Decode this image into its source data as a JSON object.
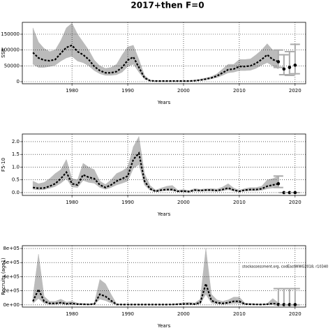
{
  "title": "2017+then F=0",
  "chart_data": [
    {
      "type": "line",
      "y_label": "SSB",
      "x_label": "Years",
      "x": [
        1973,
        1974,
        1975,
        1976,
        1977,
        1978,
        1979,
        1980,
        1981,
        1982,
        1983,
        1984,
        1985,
        1986,
        1987,
        1988,
        1989,
        1990,
        1991,
        1992,
        1993,
        1994,
        1995,
        1996,
        1997,
        1998,
        1999,
        2000,
        2001,
        2002,
        2003,
        2004,
        2005,
        2006,
        2007,
        2008,
        2009,
        2010,
        2011,
        2012,
        2013,
        2014,
        2015,
        2016,
        2017
      ],
      "values": [
        92000,
        75000,
        68000,
        66000,
        70000,
        90000,
        108000,
        115000,
        95000,
        85000,
        70000,
        48000,
        35000,
        28000,
        28000,
        32000,
        45000,
        68000,
        78000,
        45000,
        12000,
        3000,
        2000,
        2000,
        2000,
        2000,
        2000,
        2000,
        2000,
        3000,
        5000,
        8000,
        12000,
        18000,
        28000,
        38000,
        40000,
        48000,
        48000,
        50000,
        58000,
        70000,
        85000,
        70000,
        63000
      ],
      "lower": [
        55000,
        45000,
        45000,
        48000,
        52000,
        65000,
        75000,
        80000,
        65000,
        60000,
        50000,
        35000,
        25000,
        20000,
        20000,
        22000,
        30000,
        48000,
        55000,
        30000,
        8000,
        2000,
        1000,
        1000,
        1000,
        1000,
        1000,
        1000,
        1000,
        2000,
        4000,
        6000,
        9000,
        13000,
        20000,
        28000,
        30000,
        35000,
        35000,
        36000,
        42000,
        52000,
        60000,
        50000,
        40000
      ],
      "upper": [
        170000,
        125000,
        105000,
        95000,
        100000,
        130000,
        170000,
        185000,
        150000,
        125000,
        100000,
        68000,
        50000,
        42000,
        45000,
        55000,
        85000,
        110000,
        115000,
        70000,
        20000,
        5000,
        3000,
        3000,
        3000,
        3000,
        3000,
        3000,
        3000,
        5000,
        8000,
        12000,
        16000,
        25000,
        40000,
        55000,
        55000,
        70000,
        70000,
        72000,
        85000,
        100000,
        120000,
        100000,
        100000
      ],
      "forecast": {
        "x": [
          2017,
          2018,
          2019,
          2020
        ],
        "values": [
          63000,
          40000,
          45000,
          52000
        ],
        "lower": [
          45000,
          22000,
          20000,
          25000
        ],
        "upper": [
          100000,
          85000,
          95000,
          118000
        ]
      },
      "xlim": [
        1971.1,
        2021.9
      ],
      "xticks": [
        1980,
        1990,
        2000,
        2010,
        2020
      ],
      "ylim": [
        -6600,
        187500
      ],
      "yticks": [
        0,
        50000,
        100000,
        150000
      ],
      "grid": true
    },
    {
      "type": "line",
      "y_label": "F5-10",
      "x_label": "Years",
      "x": [
        1973,
        1974,
        1975,
        1976,
        1977,
        1978,
        1979,
        1980,
        1981,
        1982,
        1983,
        1984,
        1985,
        1986,
        1987,
        1988,
        1989,
        1990,
        1991,
        1992,
        1993,
        1994,
        1995,
        1996,
        1997,
        1998,
        1999,
        2000,
        2001,
        2002,
        2003,
        2004,
        2005,
        2006,
        2007,
        2008,
        2009,
        2010,
        2011,
        2012,
        2013,
        2014,
        2015,
        2016,
        2017
      ],
      "values": [
        0.2,
        0.17,
        0.18,
        0.25,
        0.35,
        0.55,
        0.8,
        0.35,
        0.3,
        0.7,
        0.6,
        0.55,
        0.3,
        0.2,
        0.3,
        0.45,
        0.55,
        0.65,
        1.3,
        1.55,
        0.45,
        0.15,
        0.05,
        0.1,
        0.12,
        0.12,
        0.05,
        0.06,
        0.04,
        0.1,
        0.08,
        0.1,
        0.1,
        0.08,
        0.12,
        0.18,
        0.1,
        0.05,
        0.1,
        0.12,
        0.12,
        0.15,
        0.25,
        0.3,
        0.35
      ],
      "lower": [
        0.13,
        0.11,
        0.12,
        0.17,
        0.24,
        0.37,
        0.55,
        0.22,
        0.2,
        0.48,
        0.4,
        0.37,
        0.2,
        0.13,
        0.2,
        0.3,
        0.37,
        0.45,
        0.95,
        1.1,
        0.3,
        0.09,
        0.03,
        0.06,
        0.08,
        0.07,
        0.03,
        0.03,
        0.02,
        0.06,
        0.05,
        0.06,
        0.06,
        0.05,
        0.07,
        0.11,
        0.06,
        0.03,
        0.06,
        0.07,
        0.07,
        0.09,
        0.15,
        0.18,
        0.2
      ],
      "upper": [
        0.45,
        0.35,
        0.4,
        0.55,
        0.75,
        0.9,
        1.3,
        0.55,
        0.5,
        1.15,
        1.0,
        0.9,
        0.45,
        0.32,
        0.5,
        0.75,
        0.85,
        1.0,
        1.8,
        2.2,
        0.75,
        0.28,
        0.1,
        0.18,
        0.25,
        0.28,
        0.1,
        0.12,
        0.08,
        0.16,
        0.13,
        0.15,
        0.16,
        0.14,
        0.22,
        0.35,
        0.18,
        0.1,
        0.16,
        0.2,
        0.2,
        0.25,
        0.5,
        0.55,
        0.65
      ],
      "forecast": {
        "x": [
          2017,
          2018,
          2019,
          2020
        ],
        "values": [
          0.35,
          0,
          0,
          0
        ],
        "lower": [
          0.2,
          0,
          0,
          0
        ],
        "upper": [
          0.65,
          0,
          0,
          0
        ]
      },
      "xlim": [
        1971.1,
        2021.9
      ],
      "xticks": [
        1980,
        1990,
        2000,
        2010,
        2020
      ],
      "ylim": [
        -0.11,
        2.3
      ],
      "yticks": [
        {
          "value": 0,
          "label": "0.0"
        },
        {
          "value": 0.5,
          "label": "0.5"
        },
        {
          "value": 1,
          "label": "1.0"
        },
        {
          "value": 1.5,
          "label": "1.5"
        },
        {
          "value": 2,
          "label": "2.0"
        }
      ],
      "grid": true
    },
    {
      "type": "line",
      "y_label": "Recruits (age1)",
      "x_label": "Years",
      "annotation": "stockassessment.org, codEastWWG2018, r10340",
      "x": [
        1973,
        1974,
        1975,
        1976,
        1977,
        1978,
        1979,
        1980,
        1981,
        1982,
        1983,
        1984,
        1985,
        1986,
        1987,
        1988,
        1989,
        1990,
        1991,
        1992,
        1993,
        1994,
        1995,
        1996,
        1997,
        1998,
        1999,
        2000,
        2001,
        2002,
        2003,
        2004,
        2005,
        2006,
        2007,
        2008,
        2009,
        2010,
        2011,
        2012,
        2013,
        2014,
        2015,
        2016,
        2017
      ],
      "values": [
        50000,
        220000,
        50000,
        20000,
        20000,
        30000,
        15000,
        20000,
        10000,
        8000,
        6000,
        10000,
        150000,
        120000,
        60000,
        5000,
        4000,
        4000,
        4000,
        4000,
        4000,
        4000,
        4000,
        4000,
        4000,
        5000,
        8000,
        12000,
        15000,
        10000,
        30000,
        300000,
        60000,
        30000,
        20000,
        30000,
        50000,
        50000,
        10000,
        8000,
        6000,
        5000,
        8000,
        20000,
        5000
      ],
      "lower": [
        20000,
        90000,
        20000,
        8000,
        8000,
        12000,
        6000,
        8000,
        4000,
        3000,
        2000,
        4000,
        80000,
        60000,
        25000,
        2000,
        1500,
        1500,
        1500,
        1500,
        1500,
        1500,
        1500,
        1500,
        1500,
        2000,
        3000,
        5000,
        6000,
        4000,
        12000,
        150000,
        25000,
        12000,
        8000,
        12000,
        20000,
        20000,
        4000,
        3000,
        2000,
        2000,
        3000,
        5000,
        1000
      ],
      "upper": [
        120000,
        720000,
        120000,
        50000,
        50000,
        80000,
        40000,
        50000,
        25000,
        20000,
        15000,
        25000,
        360000,
        300000,
        150000,
        15000,
        10000,
        10000,
        10000,
        10000,
        10000,
        10000,
        10000,
        10000,
        10000,
        12000,
        20000,
        30000,
        35000,
        25000,
        80000,
        800000,
        150000,
        70000,
        50000,
        70000,
        110000,
        110000,
        25000,
        20000,
        15000,
        12000,
        20000,
        90000,
        30000
      ],
      "forecast": {
        "x": [
          2017,
          2018,
          2019,
          2020
        ],
        "values": [
          5000,
          3000,
          3000,
          3000
        ],
        "lower": [
          0,
          0,
          0,
          0
        ],
        "upper": [
          230000,
          230000,
          230000,
          230000
        ]
      },
      "xlim": [
        1971.1,
        2021.9
      ],
      "xticks": [
        1980,
        1990,
        2000,
        2010,
        2020
      ],
      "ylim": [
        -32000,
        840000
      ],
      "yticks": [
        {
          "value": 0,
          "label": "0e+00"
        },
        {
          "value": 200000,
          "label": "2e+05"
        },
        {
          "value": 400000,
          "label": "4e+05"
        },
        {
          "value": 600000,
          "label": "6e+05"
        },
        {
          "value": 800000,
          "label": "8e+05"
        }
      ],
      "grid": true
    }
  ]
}
